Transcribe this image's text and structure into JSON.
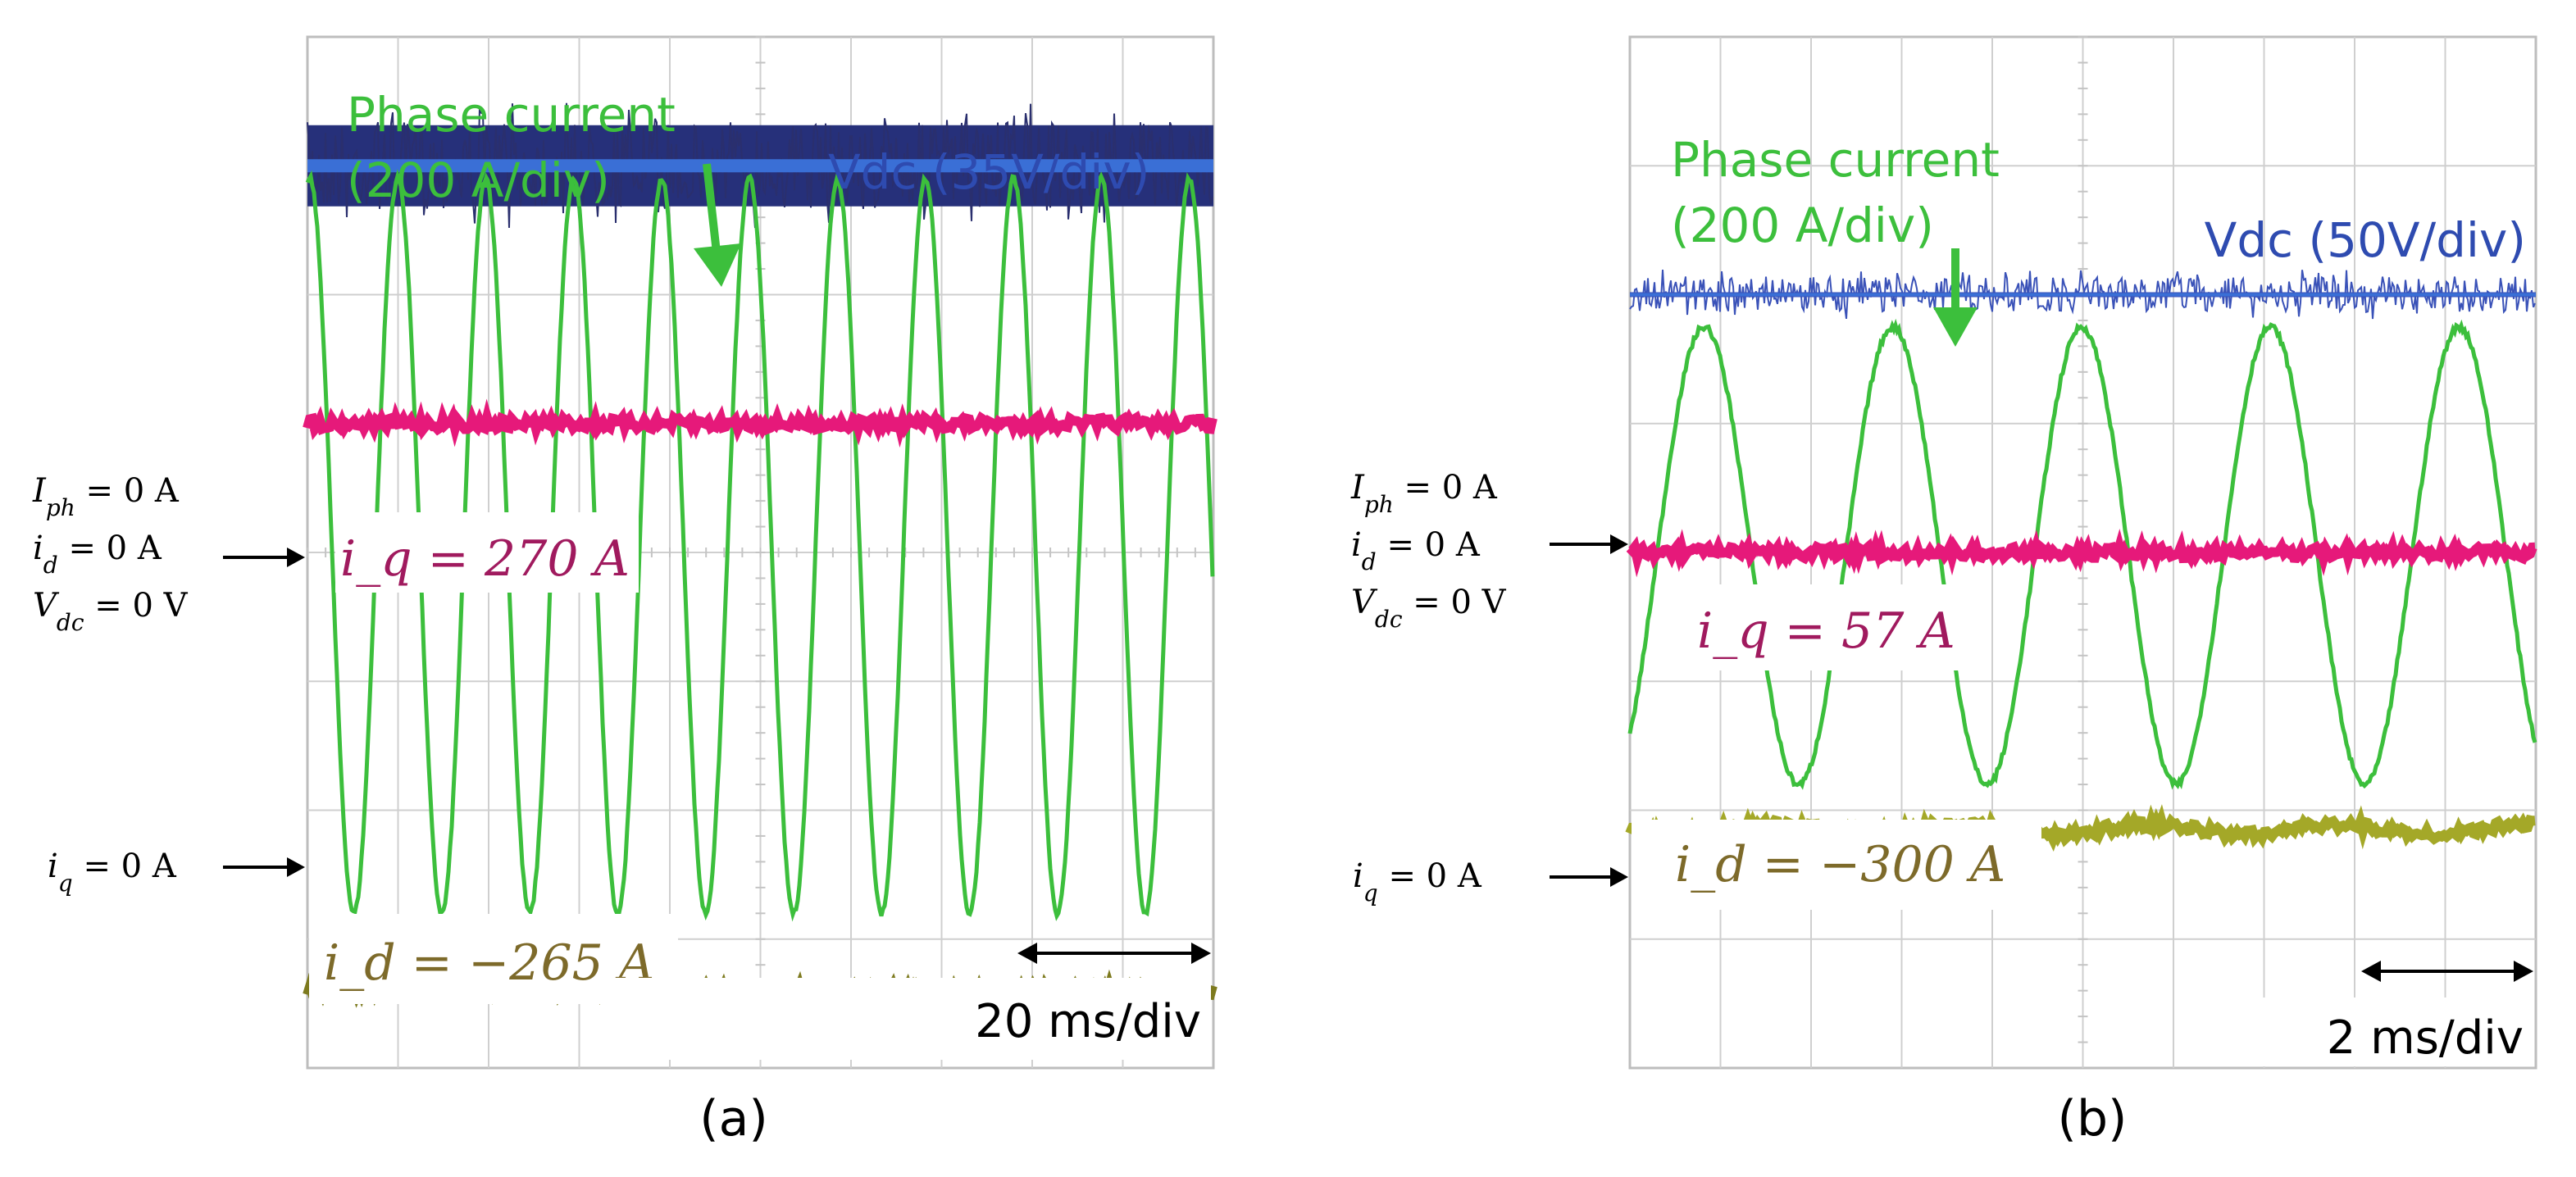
{
  "chart_data": [
    {
      "type": "line",
      "panel_label": "(a)",
      "grid_divisions": {
        "x": 10,
        "y": 8
      },
      "time_scale": "20 ms/div",
      "series": [
        {
          "name": "Vdc",
          "annotation": "Vdc (35V/div)",
          "color": "#2e4bb0",
          "level_div": 3.0,
          "noise_div": 0.75
        },
        {
          "name": "Phase current",
          "annotation_line1": "Phase current",
          "annotation_line2": "(200 A/div)",
          "color": "#3cbf3c",
          "cycles": 10.3,
          "peak_div": 2.9,
          "trough_div": -2.8
        },
        {
          "name": "iq",
          "annotation": "i_q = 270 A",
          "color": "#e6197a",
          "level_div": 1.0
        },
        {
          "name": "id",
          "annotation": "i_d = −265 A",
          "color": "#7d7a1e",
          "level_div": -3.4
        }
      ],
      "left_markers": {
        "group": [
          {
            "base": "I",
            "sub": "ph",
            "rest": " = 0 A",
            "color": "#3cbf3c"
          },
          {
            "base": "i",
            "sub": "d",
            "rest": " = 0 A",
            "color": "#6b6425"
          },
          {
            "base": "V",
            "sub": "dc",
            "rest": " = 0 V",
            "color": "#2a2f6e"
          }
        ],
        "iq_zero": {
          "base": "i",
          "sub": "q",
          "rest": " = 0 A",
          "color": "#e6197a"
        }
      }
    },
    {
      "type": "line",
      "panel_label": "(b)",
      "grid_divisions": {
        "x": 10,
        "y": 8
      },
      "time_scale": "2 ms/div",
      "series": [
        {
          "name": "Vdc",
          "annotation": "Vdc (50V/div)",
          "color": "#2e4bb0",
          "level_div": 2.0,
          "noise_div": 0.3
        },
        {
          "name": "Phase current",
          "annotation_line1": "Phase current",
          "annotation_line2": "(200 A/div)",
          "color": "#3cbf3c",
          "cycles": 4.8,
          "peak_div": 1.75,
          "trough_div": -1.8
        },
        {
          "name": "iq",
          "annotation": "i_q = 57 A",
          "color": "#e6197a",
          "level_div": 0.0
        },
        {
          "name": "id",
          "annotation": "i_d = −300 A",
          "color": "#a4a828",
          "level_div": -2.15
        }
      ],
      "left_markers": {
        "group": [
          {
            "base": "I",
            "sub": "ph",
            "rest": " = 0 A",
            "color": "#3cbf3c"
          },
          {
            "base": "i",
            "sub": "d",
            "rest": " = 0 A",
            "color": "#6b6425"
          },
          {
            "base": "V",
            "sub": "dc",
            "rest": " = 0 V",
            "color": "#2a2f6e"
          }
        ],
        "iq_zero": {
          "base": "i",
          "sub": "q",
          "rest": " = 0 A",
          "color": "#e6197a"
        }
      }
    }
  ]
}
